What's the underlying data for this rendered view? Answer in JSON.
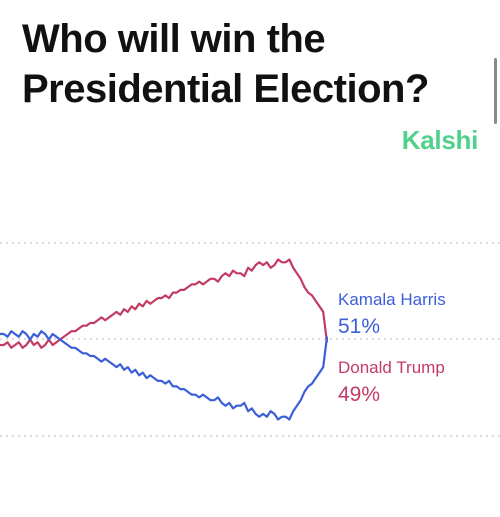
{
  "title": "Who will win the Presidential Election?",
  "brand": "Kalshi",
  "colors": {
    "harris": "#3b5fd9",
    "trump": "#c23b63",
    "brand": "#4fd18b",
    "grid": "#c8c8c8"
  },
  "chart_data": {
    "type": "line",
    "ylim": [
      15,
      85
    ],
    "grid": true,
    "series": [
      {
        "name": "Kamala Harris",
        "label": "51%",
        "values": [
          52,
          52,
          51,
          53,
          52,
          51,
          53,
          52,
          50,
          52,
          51,
          53,
          52,
          50,
          52,
          51,
          50,
          49,
          48,
          47,
          47,
          46,
          45,
          45,
          44,
          44,
          43,
          42,
          43,
          42,
          41,
          40,
          41,
          39,
          40,
          38,
          39,
          37,
          38,
          36,
          37,
          36,
          35,
          35,
          34,
          35,
          33,
          33,
          32,
          32,
          31,
          30,
          30,
          29,
          30,
          29,
          28,
          28,
          29,
          27,
          26,
          27,
          25,
          26,
          26,
          27,
          24,
          25,
          23,
          22,
          23,
          22,
          24,
          23,
          21,
          22,
          22,
          21,
          24,
          26,
          28,
          31,
          33,
          34,
          36,
          38,
          40,
          51
        ]
      },
      {
        "name": "Donald Trump",
        "label": "49%",
        "values": [
          48,
          48,
          49,
          47,
          48,
          49,
          47,
          48,
          50,
          48,
          49,
          47,
          48,
          50,
          48,
          49,
          50,
          51,
          52,
          53,
          53,
          54,
          55,
          55,
          56,
          56,
          57,
          58,
          57,
          58,
          59,
          60,
          59,
          61,
          60,
          62,
          61,
          63,
          62,
          64,
          63,
          64,
          65,
          65,
          66,
          65,
          67,
          67,
          68,
          68,
          69,
          70,
          70,
          71,
          70,
          71,
          72,
          72,
          71,
          73,
          74,
          73,
          75,
          74,
          74,
          73,
          76,
          75,
          77,
          78,
          77,
          78,
          76,
          77,
          79,
          78,
          78,
          79,
          76,
          74,
          72,
          69,
          67,
          66,
          64,
          62,
          60,
          49
        ]
      }
    ]
  }
}
